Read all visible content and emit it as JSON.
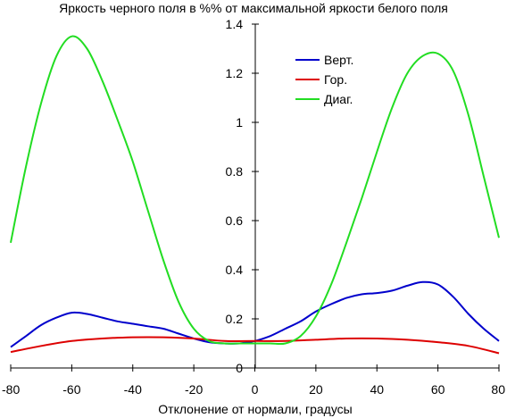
{
  "chart_data": {
    "type": "line",
    "title": "Яркость черного поля в %% от максимальной яркости белого поля",
    "xlabel": "Отклонение от нормали, градусы",
    "ylabel": "",
    "xlim": [
      -80,
      80
    ],
    "ylim": [
      0,
      1.4
    ],
    "x_ticks": [
      "-80",
      "-60",
      "-40",
      "-20",
      "0",
      "20",
      "40",
      "60",
      "80"
    ],
    "y_ticks": [
      "0",
      "0.2",
      "0.4",
      "0.6",
      "0.8",
      "1",
      "1.2",
      "1.4"
    ],
    "grid": false,
    "legend_position": "top-right",
    "series": [
      {
        "name": "Верт.",
        "color": "#0000cc",
        "x": [
          -80,
          -75,
          -70,
          -65,
          -60,
          -55,
          -50,
          -45,
          -40,
          -35,
          -30,
          -25,
          -20,
          -15,
          -10,
          -5,
          0,
          5,
          10,
          15,
          20,
          25,
          30,
          35,
          40,
          45,
          50,
          55,
          60,
          65,
          70,
          75,
          80
        ],
        "y": [
          0.085,
          0.13,
          0.175,
          0.205,
          0.225,
          0.22,
          0.205,
          0.19,
          0.18,
          0.17,
          0.16,
          0.14,
          0.12,
          0.105,
          0.1,
          0.1,
          0.11,
          0.13,
          0.16,
          0.19,
          0.23,
          0.26,
          0.285,
          0.3,
          0.305,
          0.315,
          0.335,
          0.35,
          0.34,
          0.29,
          0.22,
          0.16,
          0.11
        ]
      },
      {
        "name": "Гор.",
        "color": "#dd0000",
        "x": [
          -80,
          -70,
          -60,
          -50,
          -40,
          -30,
          -20,
          -10,
          0,
          10,
          20,
          30,
          40,
          50,
          60,
          70,
          80
        ],
        "y": [
          0.065,
          0.09,
          0.11,
          0.12,
          0.125,
          0.125,
          0.12,
          0.11,
          0.11,
          0.11,
          0.115,
          0.12,
          0.12,
          0.115,
          0.105,
          0.09,
          0.06
        ]
      },
      {
        "name": "Диаг.",
        "color": "#22dd22",
        "x": [
          -80,
          -75,
          -70,
          -65,
          -60,
          -55,
          -50,
          -45,
          -40,
          -35,
          -30,
          -25,
          -20,
          -15,
          -10,
          -5,
          0,
          5,
          10,
          15,
          20,
          25,
          30,
          35,
          40,
          45,
          50,
          55,
          60,
          65,
          70,
          75,
          80
        ],
        "y": [
          0.51,
          0.82,
          1.08,
          1.27,
          1.35,
          1.3,
          1.17,
          1.01,
          0.84,
          0.64,
          0.44,
          0.27,
          0.16,
          0.11,
          0.1,
          0.1,
          0.1,
          0.1,
          0.1,
          0.13,
          0.21,
          0.34,
          0.51,
          0.69,
          0.88,
          1.06,
          1.2,
          1.27,
          1.28,
          1.21,
          1.03,
          0.78,
          0.53
        ]
      }
    ]
  }
}
